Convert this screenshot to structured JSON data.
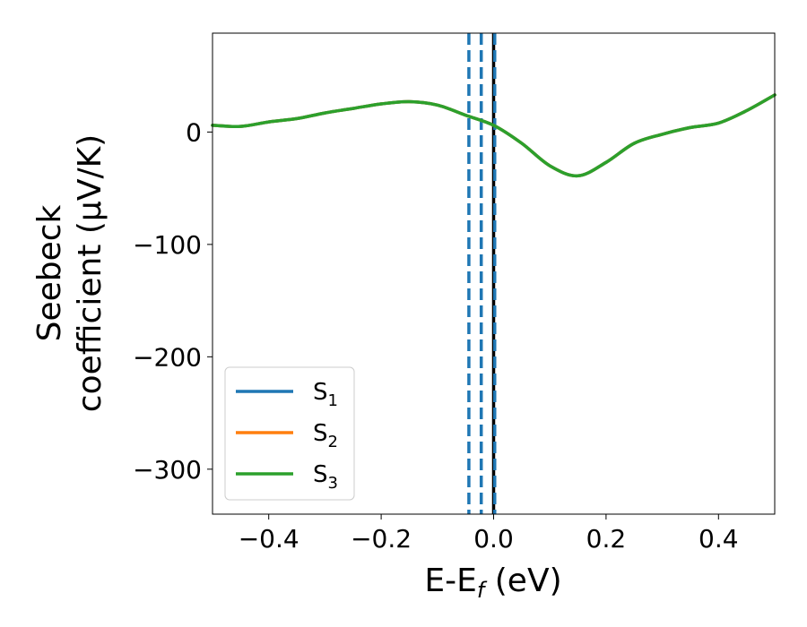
{
  "chart_data": {
    "type": "line",
    "xlabel": {
      "main": "E-E",
      "sub": "f",
      "unit": " (eV)"
    },
    "ylabel": {
      "line1": "Seebeck",
      "line2": "coefficient  (μV/K)"
    },
    "xlim": [
      -0.5,
      0.5
    ],
    "ylim": [
      -340,
      88
    ],
    "xticks": [
      -0.4,
      -0.2,
      0.0,
      0.2,
      0.4
    ],
    "xtick_labels": [
      "−0.4",
      "−0.2",
      "0.0",
      "0.2",
      "0.4"
    ],
    "yticks": [
      0,
      -100,
      -200,
      -300
    ],
    "ytick_labels": [
      "0",
      "−100",
      "−200",
      "−300"
    ],
    "grid": false,
    "legend_position": "lower-left",
    "series": [
      {
        "name": "S",
        "sub": "1",
        "color": "#1f77b4",
        "x": [
          -0.5,
          -0.45,
          -0.4,
          -0.35,
          -0.3,
          -0.25,
          -0.2,
          -0.15,
          -0.1,
          -0.05,
          0.0,
          0.05,
          0.1,
          0.15,
          0.2,
          0.25,
          0.3,
          0.35,
          0.4,
          0.45,
          0.5
        ],
        "y": [
          6,
          5,
          9,
          12,
          17,
          21,
          25,
          27,
          24,
          15,
          6,
          -10,
          -30,
          -39,
          -27,
          -10,
          -2,
          4,
          8,
          19,
          33
        ]
      },
      {
        "name": "S",
        "sub": "2",
        "color": "#ff7f0e",
        "x": [
          -0.5,
          -0.45,
          -0.4,
          -0.35,
          -0.3,
          -0.25,
          -0.2,
          -0.15,
          -0.1,
          -0.05,
          0.0,
          0.05,
          0.1,
          0.15,
          0.2,
          0.25,
          0.3,
          0.35,
          0.4,
          0.45,
          0.5
        ],
        "y": [
          6,
          5,
          9,
          12,
          17,
          21,
          25,
          27,
          24,
          15,
          6,
          -10,
          -30,
          -39,
          -27,
          -10,
          -2,
          4,
          8,
          19,
          33
        ]
      },
      {
        "name": "S",
        "sub": "3",
        "color": "#2ca02c",
        "x": [
          -0.5,
          -0.45,
          -0.4,
          -0.35,
          -0.3,
          -0.25,
          -0.2,
          -0.15,
          -0.1,
          -0.05,
          0.0,
          0.05,
          0.1,
          0.15,
          0.2,
          0.25,
          0.3,
          0.35,
          0.4,
          0.45,
          0.5
        ],
        "y": [
          6,
          5,
          9,
          12,
          17,
          21,
          25,
          27,
          24,
          15,
          6,
          -10,
          -30,
          -39,
          -27,
          -10,
          -2,
          4,
          8,
          19,
          33
        ]
      }
    ],
    "vlines": [
      {
        "x": -0.044,
        "style": "dashed",
        "color": "#1f77b4"
      },
      {
        "x": -0.022,
        "style": "dashed",
        "color": "#1f77b4"
      },
      {
        "x": 0.0,
        "style": "solid",
        "color": "#000000"
      },
      {
        "x": 0.002,
        "style": "dashed",
        "color": "#1f77b4"
      }
    ]
  }
}
